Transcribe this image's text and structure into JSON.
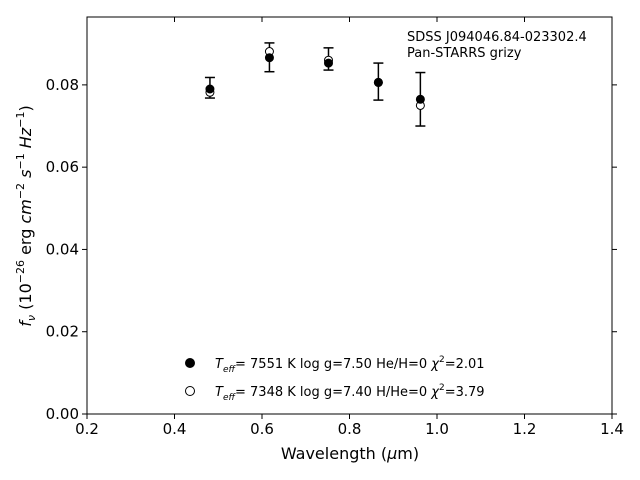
{
  "chart_data": {
    "type": "scatter",
    "annotation_lines": [
      "SDSS J094046.84-023302.4",
      "Pan-STARRS grizy"
    ],
    "xlabel": "Wavelength (μm)",
    "ylabel": "f_ν (10^-26 erg cm^-2 s^-1 Hz^-1)",
    "xlim": [
      0.2,
      1.4
    ],
    "ylim": [
      0.0,
      0.0965
    ],
    "xticks": [
      0.2,
      0.4,
      0.6,
      0.8,
      1.0,
      1.2,
      1.4
    ],
    "xtick_labels": [
      "0.2",
      "0.4",
      "0.6",
      "0.8",
      "1.0",
      "1.2",
      "1.4"
    ],
    "yticks": [
      0.0,
      0.02,
      0.04,
      0.06,
      0.08
    ],
    "ytick_labels": [
      "0.00",
      "0.02",
      "0.04",
      "0.06",
      "0.08"
    ],
    "grid": false,
    "legend_position": "lower-center",
    "observed": {
      "x": [
        0.481,
        0.617,
        0.752,
        0.866,
        0.962
      ],
      "y": [
        0.0793,
        0.0867,
        0.0863,
        0.0808,
        0.0765
      ],
      "yerr": [
        0.0025,
        0.0035,
        0.0027,
        0.0045,
        0.0065
      ]
    },
    "series": [
      {
        "name": "Teff= 7551 K log g=7.50 He/H=0 χ2=2.01",
        "marker": "filled-circle",
        "x": [
          0.481,
          0.617,
          0.752,
          0.866,
          0.962
        ],
        "y": [
          0.079,
          0.0866,
          0.0853,
          0.0806,
          0.0765
        ]
      },
      {
        "name": "Teff= 7348 K log g=7.40 H/He=0 χ2=3.79",
        "marker": "open-circle",
        "x": [
          0.481,
          0.617,
          0.752,
          0.866,
          0.962
        ],
        "y": [
          0.0782,
          0.0881,
          0.086,
          0.0806,
          0.075
        ]
      }
    ]
  }
}
